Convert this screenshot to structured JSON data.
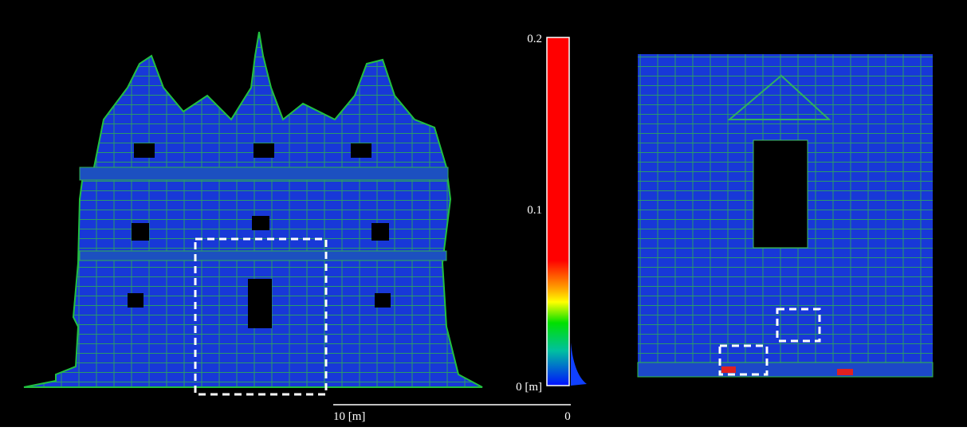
{
  "colorbar": {
    "labels": [
      "0.2",
      "0.1",
      "0 [m]"
    ]
  },
  "scale_bar": {
    "labels": [
      "10 [m]",
      "0"
    ]
  }
}
